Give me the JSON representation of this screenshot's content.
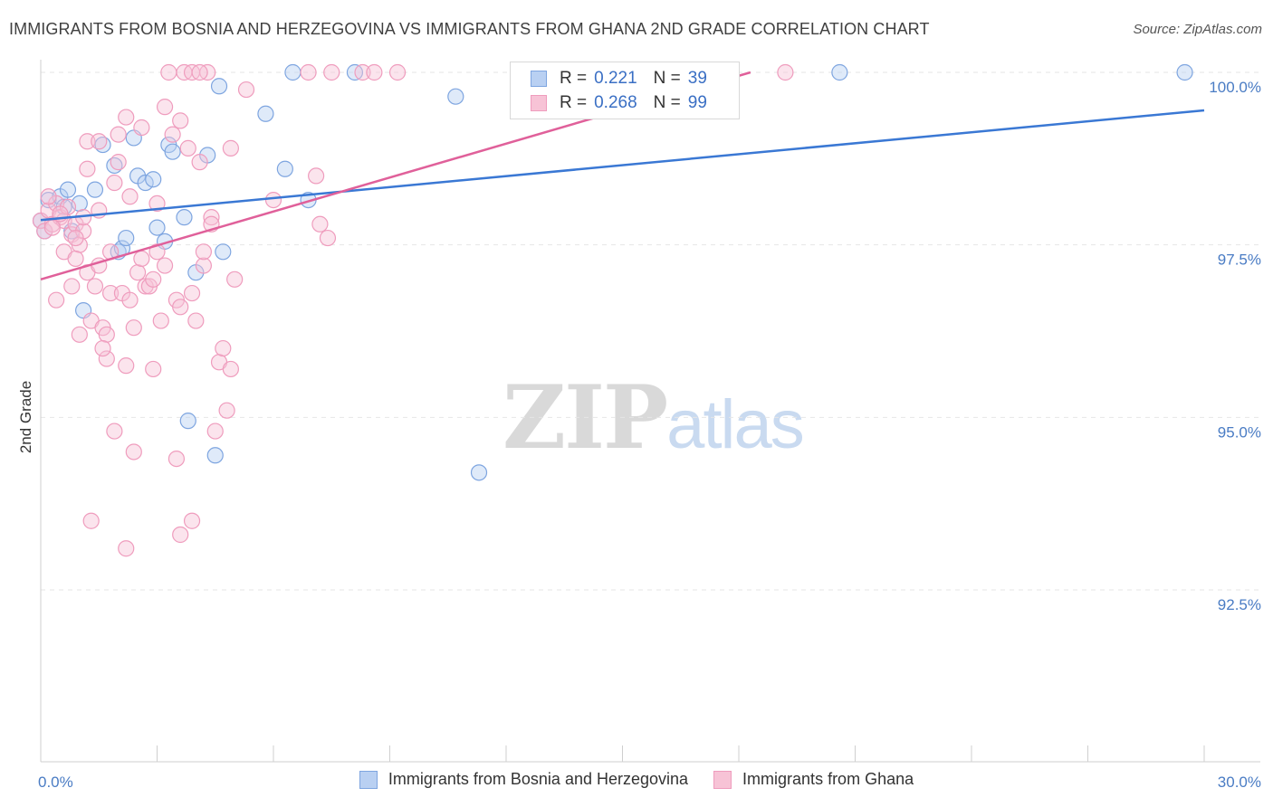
{
  "title": "IMMIGRANTS FROM BOSNIA AND HERZEGOVINA VS IMMIGRANTS FROM GHANA 2ND GRADE CORRELATION CHART",
  "source": "Source: ZipAtlas.com",
  "watermark": {
    "zip": "ZIP",
    "atlas": "atlas"
  },
  "colors": {
    "blue": "#3a78d4",
    "blue_fill": "#b9d0f2",
    "blue_stroke": "#7ea5e0",
    "pink": "#e0609a",
    "pink_fill": "#f7c3d6",
    "pink_stroke": "#ef9cbd",
    "grid": "#e6e6e6",
    "axis_text": "#4a7cc4"
  },
  "legend": {
    "rows": [
      {
        "r_key": "R =",
        "r_val": "0.221",
        "n_key": "N =",
        "n_val": "39"
      },
      {
        "r_key": "R =",
        "r_val": "0.268",
        "n_key": "N =",
        "n_val": "99"
      }
    ]
  },
  "chart_data": {
    "type": "scatter",
    "title": "IMMIGRANTS FROM BOSNIA AND HERZEGOVINA VS IMMIGRANTS FROM GHANA 2ND GRADE CORRELATION CHART",
    "xlabel": "",
    "ylabel": "2nd Grade",
    "xlim": [
      0,
      30
    ],
    "ylim": [
      90.0,
      100.4
    ],
    "x_tick_labels": [
      "0.0%",
      "30.0%"
    ],
    "y_ticks": [
      92.5,
      95.0,
      97.5,
      100.0
    ],
    "y_tick_labels": [
      "92.5%",
      "95.0%",
      "97.5%",
      "100.0%"
    ],
    "grid": true,
    "legend_position": "top-center",
    "series": [
      {
        "name": "Immigrants from Bosnia and Herzegovina",
        "color": "blue",
        "r": 0.221,
        "n": 39,
        "trend": {
          "x": [
            0,
            30
          ],
          "y": [
            97.86,
            99.45
          ]
        },
        "points": [
          [
            0.1,
            97.7
          ],
          [
            0.2,
            98.15
          ],
          [
            0.5,
            98.2
          ],
          [
            0.6,
            98.05
          ],
          [
            0.7,
            98.3
          ],
          [
            0.8,
            97.7
          ],
          [
            1.0,
            98.1
          ],
          [
            1.4,
            98.3
          ],
          [
            1.6,
            98.95
          ],
          [
            1.9,
            98.65
          ],
          [
            2.0,
            97.4
          ],
          [
            2.1,
            97.45
          ],
          [
            2.2,
            97.6
          ],
          [
            2.4,
            99.05
          ],
          [
            2.5,
            98.5
          ],
          [
            2.7,
            98.4
          ],
          [
            2.9,
            98.45
          ],
          [
            3.0,
            97.75
          ],
          [
            3.2,
            97.55
          ],
          [
            3.3,
            98.95
          ],
          [
            3.4,
            98.85
          ],
          [
            3.7,
            97.9
          ],
          [
            3.8,
            94.95
          ],
          [
            4.0,
            97.1
          ],
          [
            4.3,
            98.8
          ],
          [
            4.5,
            94.45
          ],
          [
            4.6,
            99.8
          ],
          [
            4.7,
            97.4
          ],
          [
            5.8,
            99.4
          ],
          [
            6.3,
            98.6
          ],
          [
            6.5,
            100.0
          ],
          [
            6.9,
            98.15
          ],
          [
            8.1,
            100.0
          ],
          [
            10.7,
            99.65
          ],
          [
            11.3,
            94.2
          ],
          [
            20.6,
            100.0
          ],
          [
            29.5,
            100.0
          ],
          [
            0.0,
            97.85
          ],
          [
            1.1,
            96.55
          ]
        ]
      },
      {
        "name": "Immigrants from Ghana",
        "color": "pink",
        "r": 0.268,
        "n": 99,
        "trend": {
          "x": [
            0,
            18.3
          ],
          "y": [
            97.0,
            100.0
          ]
        },
        "points": [
          [
            0.0,
            97.85
          ],
          [
            0.1,
            97.7
          ],
          [
            0.2,
            98.0
          ],
          [
            0.3,
            97.8
          ],
          [
            0.4,
            98.1
          ],
          [
            0.5,
            97.9
          ],
          [
            0.6,
            97.85
          ],
          [
            0.7,
            98.05
          ],
          [
            0.8,
            97.65
          ],
          [
            0.9,
            97.8
          ],
          [
            1.0,
            97.5
          ],
          [
            0.4,
            96.7
          ],
          [
            0.6,
            97.4
          ],
          [
            0.8,
            96.9
          ],
          [
            0.9,
            97.3
          ],
          [
            1.0,
            96.2
          ],
          [
            1.1,
            97.7
          ],
          [
            1.2,
            97.1
          ],
          [
            1.3,
            96.4
          ],
          [
            1.4,
            96.9
          ],
          [
            1.5,
            97.2
          ],
          [
            1.5,
            98.0
          ],
          [
            1.6,
            96.3
          ],
          [
            1.7,
            96.2
          ],
          [
            1.7,
            95.85
          ],
          [
            1.8,
            96.8
          ],
          [
            1.9,
            98.4
          ],
          [
            1.2,
            98.6
          ],
          [
            1.2,
            99.0
          ],
          [
            1.5,
            99.0
          ],
          [
            2.0,
            98.7
          ],
          [
            2.0,
            99.1
          ],
          [
            2.1,
            96.8
          ],
          [
            2.2,
            99.35
          ],
          [
            2.3,
            96.7
          ],
          [
            2.4,
            96.3
          ],
          [
            2.5,
            97.1
          ],
          [
            2.6,
            99.2
          ],
          [
            2.7,
            96.9
          ],
          [
            2.8,
            96.9
          ],
          [
            2.9,
            95.7
          ],
          [
            3.0,
            97.4
          ],
          [
            3.1,
            96.4
          ],
          [
            3.2,
            97.2
          ],
          [
            3.2,
            99.5
          ],
          [
            3.3,
            100.0
          ],
          [
            3.4,
            99.1
          ],
          [
            3.5,
            96.7
          ],
          [
            3.6,
            96.6
          ],
          [
            3.7,
            100.0
          ],
          [
            3.8,
            98.9
          ],
          [
            3.9,
            100.0
          ],
          [
            4.0,
            96.4
          ],
          [
            4.1,
            98.7
          ],
          [
            4.2,
            97.2
          ],
          [
            4.3,
            100.0
          ],
          [
            4.4,
            97.9
          ],
          [
            4.5,
            94.8
          ],
          [
            4.6,
            95.8
          ],
          [
            4.7,
            96.0
          ],
          [
            4.8,
            95.1
          ],
          [
            4.9,
            95.7
          ],
          [
            5.0,
            97.0
          ],
          [
            5.3,
            99.75
          ],
          [
            6.0,
            98.15
          ],
          [
            6.9,
            100.0
          ],
          [
            7.1,
            98.5
          ],
          [
            7.2,
            97.8
          ],
          [
            7.4,
            97.6
          ],
          [
            7.5,
            100.0
          ],
          [
            8.3,
            100.0
          ],
          [
            8.6,
            100.0
          ],
          [
            9.2,
            100.0
          ],
          [
            19.2,
            100.0
          ],
          [
            0.2,
            98.2
          ],
          [
            0.5,
            97.95
          ],
          [
            1.8,
            97.4
          ],
          [
            2.3,
            98.2
          ],
          [
            3.0,
            98.1
          ],
          [
            3.6,
            99.3
          ],
          [
            4.1,
            100.0
          ],
          [
            4.9,
            98.9
          ],
          [
            1.3,
            93.5
          ],
          [
            2.2,
            93.1
          ],
          [
            3.6,
            93.3
          ],
          [
            3.9,
            93.5
          ],
          [
            3.5,
            94.4
          ],
          [
            2.4,
            94.5
          ],
          [
            1.9,
            94.8
          ],
          [
            2.2,
            95.75
          ],
          [
            0.9,
            97.6
          ],
          [
            1.6,
            96.0
          ],
          [
            2.6,
            97.3
          ],
          [
            3.9,
            96.8
          ],
          [
            4.2,
            97.4
          ],
          [
            1.1,
            97.9
          ],
          [
            0.3,
            97.75
          ],
          [
            2.9,
            97.0
          ],
          [
            4.4,
            97.8
          ]
        ]
      }
    ]
  }
}
